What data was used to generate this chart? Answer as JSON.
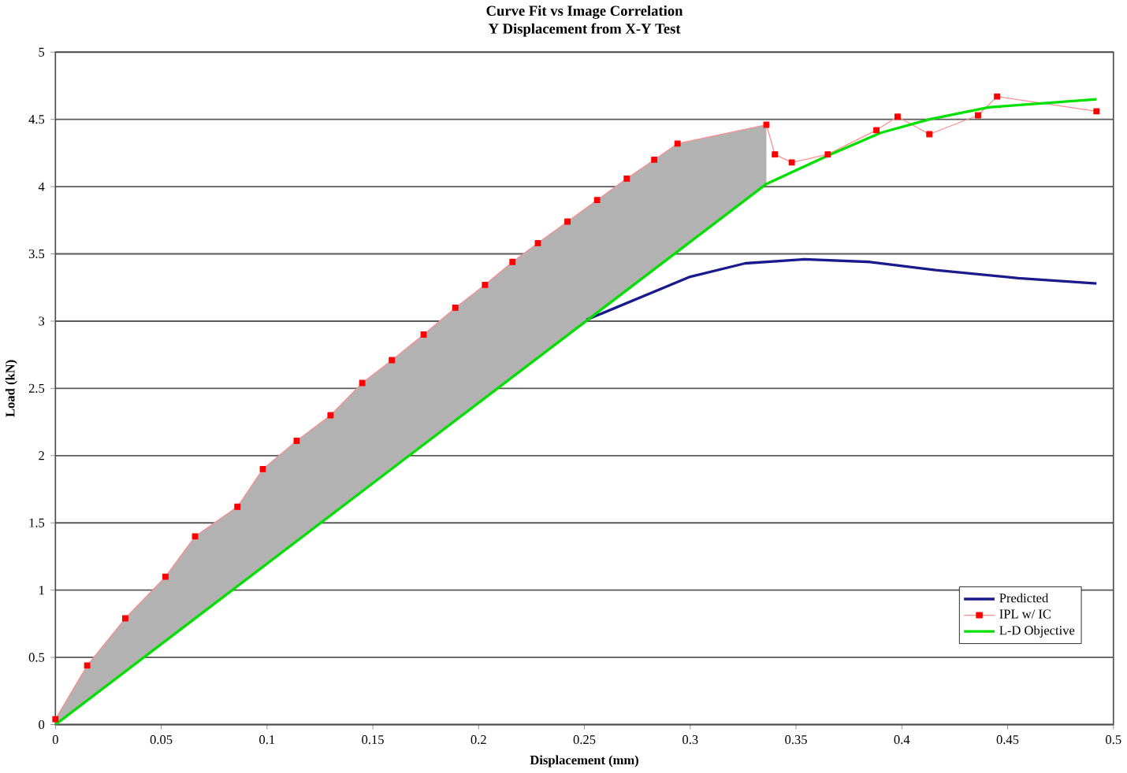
{
  "chart_data": {
    "type": "line",
    "title": "Curve Fit vs Image Correlation",
    "subtitle": "Y Displacement from X-Y Test",
    "xlabel": "Displacement (mm)",
    "ylabel": "Load (kN)",
    "xlim": [
      0,
      0.5
    ],
    "ylim": [
      0,
      5
    ],
    "xticks": [
      0,
      0.05,
      0.1,
      0.15,
      0.2,
      0.25,
      0.3,
      0.35,
      0.4,
      0.45,
      0.5
    ],
    "yticks": [
      0,
      0.5,
      1,
      1.5,
      2,
      2.5,
      3,
      3.5,
      4,
      4.5,
      5
    ],
    "grid": "y",
    "legend": "bottom right",
    "series": [
      {
        "name": "Predicted",
        "color": "#1a1a8c",
        "marker": "none",
        "x": [
          0.251,
          0.3,
          0.326,
          0.354,
          0.385,
          0.416,
          0.455,
          0.492
        ],
        "values": [
          3.01,
          3.33,
          3.43,
          3.46,
          3.44,
          3.38,
          3.32,
          3.28
        ]
      },
      {
        "name": "IPL w/ IC",
        "color": "#ff0000",
        "marker": "square",
        "x": [
          0,
          0.015,
          0.033,
          0.052,
          0.066,
          0.086,
          0.098,
          0.114,
          0.13,
          0.145,
          0.159,
          0.174,
          0.189,
          0.203,
          0.216,
          0.228,
          0.242,
          0.256,
          0.27,
          0.283,
          0.294,
          0.336,
          0.34,
          0.348,
          0.365,
          0.388,
          0.398,
          0.413,
          0.436,
          0.445,
          0.492
        ],
        "values": [
          0.04,
          0.44,
          0.79,
          1.1,
          1.4,
          1.62,
          1.9,
          2.11,
          2.3,
          2.54,
          2.71,
          2.9,
          3.1,
          3.27,
          3.44,
          3.58,
          3.74,
          3.9,
          4.06,
          4.2,
          4.32,
          4.46,
          4.24,
          4.18,
          4.24,
          4.42,
          4.52,
          4.39,
          4.53,
          4.67,
          4.56
        ],
        "upper": [
          0.04,
          0.44,
          0.79,
          1.1,
          1.4,
          1.62,
          1.9,
          2.11,
          2.3,
          2.54,
          2.71,
          2.9,
          3.1,
          3.27,
          3.44,
          3.58,
          3.74,
          3.9,
          4.06,
          4.2,
          4.32,
          4.46,
          null,
          null,
          null,
          null,
          null,
          null,
          null,
          null,
          null
        ],
        "lower": [
          0,
          0.18,
          0.4,
          0.62,
          0.79,
          1.03,
          1.17,
          1.36,
          1.56,
          1.73,
          1.9,
          2.08,
          2.26,
          2.43,
          2.58,
          2.73,
          2.89,
          3.06,
          3.23,
          3.39,
          3.52,
          4.02,
          null,
          null,
          null,
          null,
          null,
          null,
          null,
          null,
          null
        ]
      },
      {
        "name": "L-D Objective",
        "color": "#00e000",
        "marker": "none",
        "x": [
          0,
          0.336,
          0.365,
          0.39,
          0.413,
          0.441,
          0.492
        ],
        "values": [
          0,
          4.02,
          4.23,
          4.4,
          4.5,
          4.59,
          4.65
        ]
      }
    ]
  }
}
